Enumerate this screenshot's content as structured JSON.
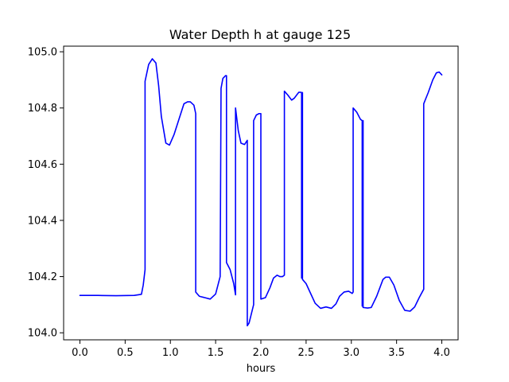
{
  "chart_data": {
    "type": "line",
    "title": "Water Depth h at gauge 125",
    "xlabel": "hours",
    "ylabel": "",
    "xlim": [
      -0.18,
      4.18
    ],
    "ylim": [
      103.975,
      105.02
    ],
    "xticks": [
      0.0,
      0.5,
      1.0,
      1.5,
      2.0,
      2.5,
      3.0,
      3.5,
      4.0
    ],
    "xtick_labels": [
      "0.0",
      "0.5",
      "1.0",
      "1.5",
      "2.0",
      "2.5",
      "3.0",
      "3.5",
      "4.0"
    ],
    "yticks": [
      104.0,
      104.2,
      104.4,
      104.6,
      104.8,
      105.0
    ],
    "ytick_labels": [
      "104.0",
      "104.2",
      "104.4",
      "104.6",
      "104.8",
      "105.0"
    ],
    "grid": false,
    "legend": "none",
    "series": [
      {
        "color": "#0000ff",
        "x": [
          0.0,
          0.2,
          0.4,
          0.6,
          0.68,
          0.7,
          0.72,
          0.72,
          0.76,
          0.8,
          0.84,
          0.87,
          0.9,
          0.95,
          0.99,
          1.04,
          1.1,
          1.15,
          1.19,
          1.22,
          1.26,
          1.28,
          1.28,
          1.32,
          1.38,
          1.44,
          1.5,
          1.55,
          1.56,
          1.58,
          1.61,
          1.62,
          1.62,
          1.66,
          1.7,
          1.72,
          1.72,
          1.75,
          1.78,
          1.82,
          1.85,
          1.85,
          1.87,
          1.92,
          1.92,
          1.95,
          1.98,
          2.0,
          2.0,
          2.05,
          2.1,
          2.14,
          2.18,
          2.21,
          2.24,
          2.26,
          2.26,
          2.3,
          2.34,
          2.37,
          2.4,
          2.42,
          2.44,
          2.45,
          2.45,
          2.45,
          2.46,
          2.46,
          2.46,
          2.5,
          2.55,
          2.6,
          2.66,
          2.72,
          2.78,
          2.83,
          2.87,
          2.92,
          2.97,
          3.01,
          3.02,
          3.02,
          3.06,
          3.1,
          3.12,
          3.12,
          3.12,
          3.13,
          3.13,
          3.13,
          3.18,
          3.22,
          3.28,
          3.35,
          3.38,
          3.42,
          3.47,
          3.53,
          3.59,
          3.65,
          3.7,
          3.75,
          3.8,
          3.8,
          3.85,
          3.9,
          3.94,
          3.97,
          4.0
        ],
        "y": [
          104.133,
          104.133,
          104.132,
          104.133,
          104.137,
          104.17,
          104.225,
          104.895,
          104.955,
          104.975,
          104.96,
          104.88,
          104.77,
          104.675,
          104.668,
          104.705,
          104.765,
          104.815,
          104.822,
          104.822,
          104.81,
          104.78,
          104.145,
          104.13,
          104.125,
          104.12,
          104.138,
          104.2,
          104.87,
          104.905,
          104.915,
          104.915,
          104.25,
          104.225,
          104.175,
          104.135,
          104.8,
          104.72,
          104.675,
          104.67,
          104.685,
          104.025,
          104.035,
          104.1,
          104.755,
          104.775,
          104.78,
          104.78,
          104.12,
          104.125,
          104.16,
          104.195,
          104.205,
          104.2,
          104.2,
          104.205,
          104.86,
          104.845,
          104.828,
          104.835,
          104.848,
          104.856,
          104.856,
          104.855,
          104.195,
          104.855,
          104.195,
          104.855,
          104.19,
          104.175,
          104.14,
          104.105,
          104.087,
          104.092,
          104.087,
          104.103,
          104.13,
          104.145,
          104.148,
          104.14,
          104.145,
          104.8,
          104.785,
          104.76,
          104.755,
          104.095,
          104.755,
          104.095,
          104.755,
          104.09,
          104.088,
          104.09,
          104.13,
          104.19,
          104.198,
          104.198,
          104.17,
          104.115,
          104.08,
          104.077,
          104.092,
          104.125,
          104.155,
          104.815,
          104.855,
          104.9,
          104.925,
          104.928,
          104.918
        ]
      }
    ]
  }
}
